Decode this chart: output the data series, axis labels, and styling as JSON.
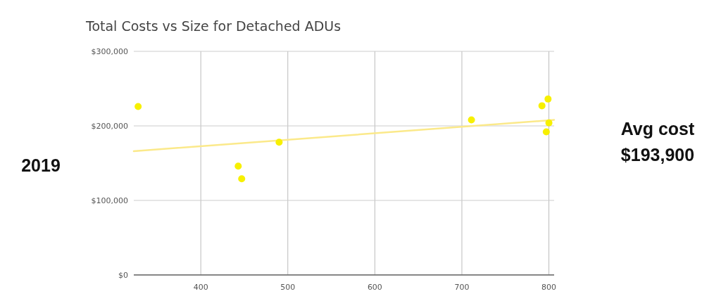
{
  "chart_data": {
    "type": "scatter",
    "title": "Total Costs vs Size for Detached ADUs",
    "series": [
      {
        "marker": "circle",
        "color": "#f7f000",
        "x": [
          328,
          443,
          447,
          490,
          711,
          792,
          799,
          800,
          797
        ],
        "values": [
          226000,
          146000,
          129000,
          178000,
          208000,
          227000,
          236000,
          204000,
          192000
        ]
      },
      {
        "type": "line",
        "color": "#fbe98a",
        "x": [
          323,
          806
        ],
        "values": [
          166000,
          208000
        ]
      }
    ],
    "xlim": [
      323,
      806
    ],
    "xticks": [
      400,
      500,
      600,
      700,
      800
    ],
    "ylim": [
      0,
      300000
    ],
    "yticks": [
      {
        "value": 0,
        "label": "$0"
      },
      {
        "value": 100000,
        "label": "$100,000"
      },
      {
        "value": 200000,
        "label": "$200,000"
      },
      {
        "value": 300000,
        "label": "$300,000"
      }
    ],
    "grid": true,
    "annotations": [
      "2019",
      "Avg cost\n$193,900"
    ]
  }
}
